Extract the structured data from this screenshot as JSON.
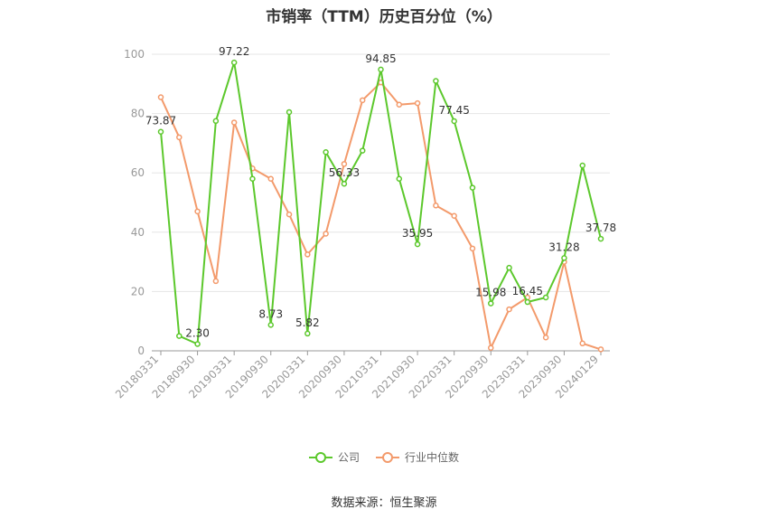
{
  "chart_data": {
    "type": "line",
    "title": "市销率（TTM）历史百分位（%）",
    "categories": [
      "20180331",
      "",
      "20180930",
      "",
      "20190331",
      "",
      "20190930",
      "",
      "20200331",
      "",
      "20200930",
      "",
      "20210331",
      "",
      "20210930",
      "",
      "20220331",
      "",
      "20220930",
      "",
      "20230331",
      "",
      "20230930",
      "",
      "20240129"
    ],
    "x_tick_labels": [
      "20180331",
      "20180930",
      "20190331",
      "20190930",
      "20200331",
      "20200930",
      "20210331",
      "20210930",
      "20220331",
      "20220930",
      "20230331",
      "20230930",
      "20240129"
    ],
    "ylim": [
      0,
      100
    ],
    "yticks": [
      "0",
      "20",
      "40",
      "60",
      "80",
      "100"
    ],
    "grid": true,
    "legend_position": "bottom",
    "series": [
      {
        "name": "公司",
        "color": "#5cc82c",
        "values": [
          73.87,
          5.0,
          2.3,
          77.5,
          97.22,
          58.0,
          8.73,
          80.5,
          5.82,
          67.0,
          56.33,
          67.5,
          94.85,
          58.0,
          35.95,
          91.0,
          77.45,
          55.0,
          15.98,
          28.0,
          16.45,
          18.0,
          31.28,
          62.5,
          37.78
        ],
        "labels": {
          "0": "73.87",
          "2": "2.30",
          "4": "97.22",
          "6": "8.73",
          "8": "5.82",
          "10": "56.33",
          "12": "94.85",
          "14": "35.95",
          "16": "77.45",
          "18": "15.98",
          "20": "16.45",
          "22": "31.28",
          "24": "37.78"
        }
      },
      {
        "name": "行业中位数",
        "color": "#f39a6b",
        "values": [
          85.5,
          72.0,
          47.0,
          23.5,
          77.0,
          61.5,
          58.0,
          46.0,
          32.5,
          39.5,
          63.0,
          84.5,
          90.5,
          83.0,
          83.5,
          49.0,
          45.5,
          34.5,
          1.0,
          14.0,
          18.0,
          4.5,
          30.0,
          2.5,
          0.5
        ]
      }
    ]
  },
  "source": "数据来源：恒生聚源"
}
